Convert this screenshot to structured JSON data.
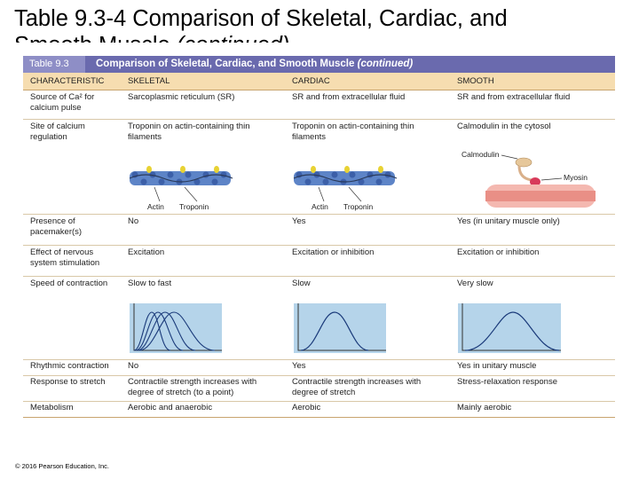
{
  "slide_title": {
    "line1": "Table 9.3-4 Comparison of Skeletal, Cardiac, and",
    "line2": "Smooth Muscle (continued)"
  },
  "table": {
    "tag": "Table 9.3",
    "title_main": "Comparison of Skeletal, Cardiac, and Smooth Muscle",
    "title_cont": "(continued)",
    "headers": [
      "CHARACTERISTIC",
      "SKELETAL",
      "CARDIAC",
      "SMOOTH"
    ],
    "rows": [
      {
        "characteristic": "Source of Ca² for calcium pulse",
        "skeletal": "Sarcoplasmic reticulum (SR)",
        "cardiac": "SR and from extracellular fluid",
        "smooth": "SR and from extracellular fluid"
      },
      {
        "characteristic": "Site of calcium regulation",
        "skeletal": "Troponin on actin-containing thin filaments",
        "cardiac": "Troponin on actin-containing thin filaments",
        "smooth": "Calmodulin in the cytosol"
      },
      {
        "characteristic": "Presence of pacemaker(s)",
        "skeletal": "No",
        "cardiac": "Yes",
        "smooth": "Yes (in unitary muscle only)"
      },
      {
        "characteristic": "Effect of nervous system stimulation",
        "skeletal": "Excitation",
        "cardiac": "Excitation or inhibition",
        "smooth": "Excitation or inhibition"
      },
      {
        "characteristic": "Speed of contraction",
        "skeletal": "Slow to fast",
        "cardiac": "Slow",
        "smooth": "Very slow"
      },
      {
        "characteristic": "Rhythmic contraction",
        "skeletal": "No",
        "cardiac": "Yes",
        "smooth": "Yes in unitary muscle"
      },
      {
        "characteristic": "Response to stretch",
        "skeletal": "Contractile strength increases with degree of stretch (to a point)",
        "cardiac": "Contractile strength increases with degree of stretch",
        "smooth": "Stress-relaxation response"
      },
      {
        "characteristic": "Metabolism",
        "skeletal": "Aerobic and anaerobic",
        "cardiac": "Aerobic",
        "smooth": "Mainly aerobic"
      }
    ],
    "figure_labels": {
      "actin": "Actin",
      "troponin": "Troponin",
      "calmodulin": "Calmodulin",
      "myosin": "Myosin"
    }
  },
  "colors": {
    "banner": "#6a6aae",
    "banner_tag": "#8e8ec6",
    "header": "#f6ddb0",
    "plot_bg": "#b5d4ea",
    "curve": "#1a3a7a"
  },
  "copyright": "© 2016 Pearson Education, Inc."
}
